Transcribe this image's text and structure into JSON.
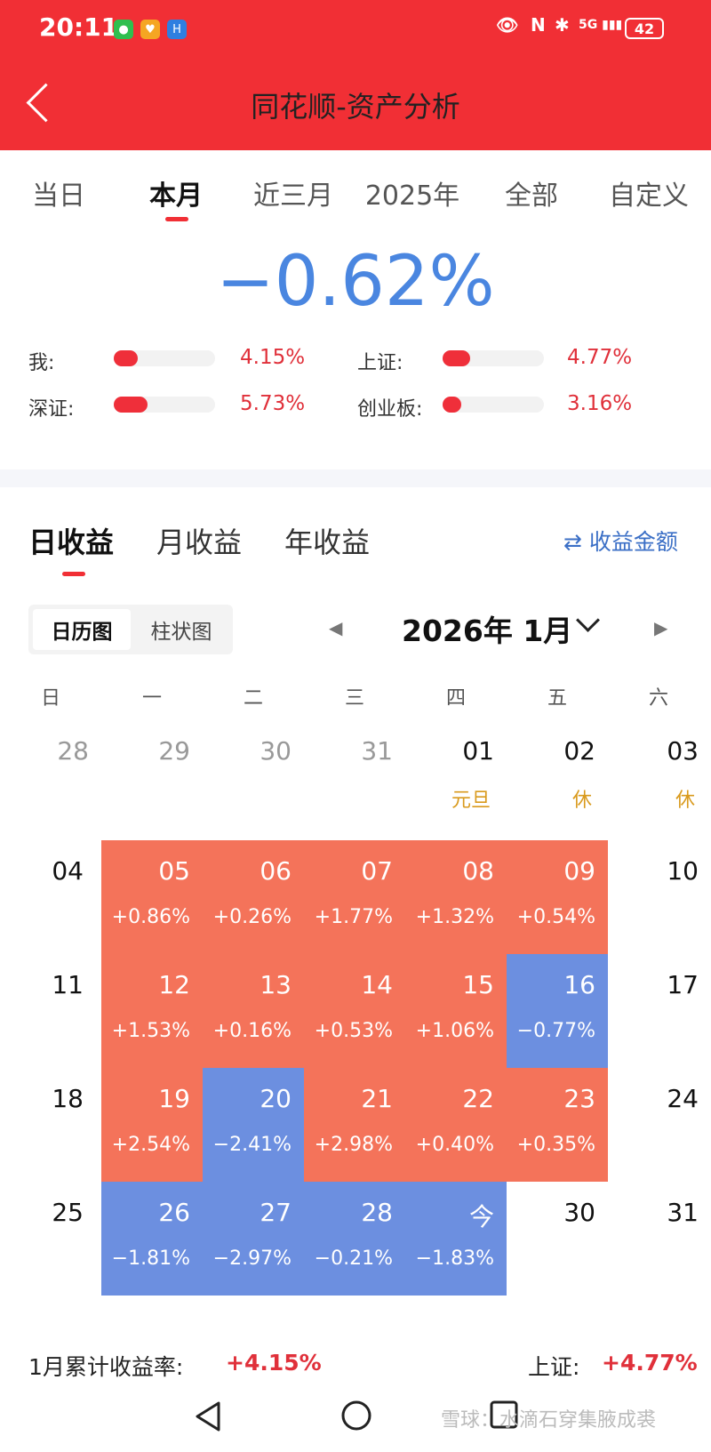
{
  "status_bar": {
    "time": "20:11",
    "battery": "42",
    "signal": "5G"
  },
  "header": {
    "title": "同花顺-资产分析"
  },
  "period_tabs": [
    "当日",
    "本月",
    "近三月",
    "2025年",
    "全部",
    "自定义"
  ],
  "active_period": "本月",
  "summary": {
    "return": "−0.62%",
    "color": "#4a86e0"
  },
  "comparisons": [
    {
      "label": "我:",
      "value": "4.15%",
      "bar_fraction": 0.24
    },
    {
      "label": "上证:",
      "value": "4.77%",
      "bar_fraction": 0.27
    },
    {
      "label": "深证:",
      "value": "5.73%",
      "bar_fraction": 0.33
    },
    {
      "label": "创业板:",
      "value": "3.16%",
      "bar_fraction": 0.18
    }
  ],
  "earnings_tabs": [
    "日收益",
    "月收益",
    "年收益"
  ],
  "toggle_label": "收益金额",
  "view_switch": [
    "日历图",
    "柱状图"
  ],
  "month_label": "2026年 1月",
  "weekdays": [
    "日",
    "一",
    "二",
    "三",
    "四",
    "五",
    "六"
  ],
  "calendar": {
    "weeks": [
      [
        {
          "d": "28",
          "t": "gray"
        },
        {
          "d": "29",
          "t": "gray"
        },
        {
          "d": "30",
          "t": "gray"
        },
        {
          "d": "31",
          "t": "gray"
        },
        {
          "d": "01",
          "t": "plain",
          "note": "元旦"
        },
        {
          "d": "02",
          "t": "plain",
          "note": "休"
        },
        {
          "d": "03",
          "t": "plain",
          "note": "休"
        }
      ],
      [
        {
          "d": "04",
          "t": "plain"
        },
        {
          "d": "05",
          "t": "pos",
          "p": "+0.86%"
        },
        {
          "d": "06",
          "t": "pos",
          "p": "+0.26%"
        },
        {
          "d": "07",
          "t": "pos",
          "p": "+1.77%"
        },
        {
          "d": "08",
          "t": "pos",
          "p": "+1.32%"
        },
        {
          "d": "09",
          "t": "pos",
          "p": "+0.54%"
        },
        {
          "d": "10",
          "t": "plain"
        }
      ],
      [
        {
          "d": "11",
          "t": "plain"
        },
        {
          "d": "12",
          "t": "pos",
          "p": "+1.53%"
        },
        {
          "d": "13",
          "t": "pos",
          "p": "+0.16%"
        },
        {
          "d": "14",
          "t": "pos",
          "p": "+0.53%"
        },
        {
          "d": "15",
          "t": "pos",
          "p": "+1.06%"
        },
        {
          "d": "16",
          "t": "neg",
          "p": "−0.77%"
        },
        {
          "d": "17",
          "t": "plain"
        }
      ],
      [
        {
          "d": "18",
          "t": "plain"
        },
        {
          "d": "19",
          "t": "pos",
          "p": "+2.54%"
        },
        {
          "d": "20",
          "t": "neg",
          "p": "−2.41%"
        },
        {
          "d": "21",
          "t": "pos",
          "p": "+2.98%"
        },
        {
          "d": "22",
          "t": "pos",
          "p": "+0.40%"
        },
        {
          "d": "23",
          "t": "pos",
          "p": "+0.35%"
        },
        {
          "d": "24",
          "t": "plain"
        }
      ],
      [
        {
          "d": "25",
          "t": "plain"
        },
        {
          "d": "26",
          "t": "neg",
          "p": "−1.81%"
        },
        {
          "d": "27",
          "t": "neg",
          "p": "−2.97%"
        },
        {
          "d": "28",
          "t": "neg",
          "p": "−0.21%"
        },
        {
          "d": "今",
          "t": "neg",
          "p": "−1.83%"
        },
        {
          "d": "30",
          "t": "plain"
        },
        {
          "d": "31",
          "t": "plain"
        }
      ]
    ]
  },
  "footer": {
    "label_left": "1月累计收益率:",
    "value_left": "+4.15%",
    "label_right": "上证:",
    "value_right": "+4.77%"
  },
  "watermark": "雪球：水滴石穿集腋成裘",
  "colors": {
    "brand": "#f12f35",
    "positive": "#f4735a",
    "negative": "#6c8fe0",
    "holiday": "#d99a1d"
  }
}
